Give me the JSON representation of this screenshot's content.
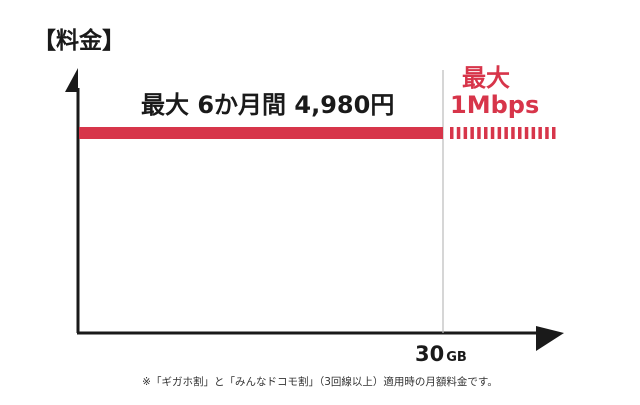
{
  "title": "【料金】",
  "chart_data": {
    "type": "line",
    "x_marker": {
      "value": 30,
      "label_value": "30",
      "label_unit": "GB"
    },
    "series": [
      {
        "label": "最大 6か月間 4,980円",
        "segment": "up-to-30GB",
        "style": "solid"
      },
      {
        "label_lines": [
          "最大",
          "1Mbps"
        ],
        "segment": "after-30GB",
        "style": "dashed"
      }
    ],
    "axes": {
      "x_arrow": true,
      "y_arrow": true
    },
    "colors": {
      "line": "#d7354a",
      "axis": "#1a1a1a",
      "guide": "#bbbbbb",
      "accent_text": "#d7354a"
    }
  },
  "footnote": "※「ギガホ割」と「みんなドコモ割」（3回線以上）適用時の月額料金です。"
}
